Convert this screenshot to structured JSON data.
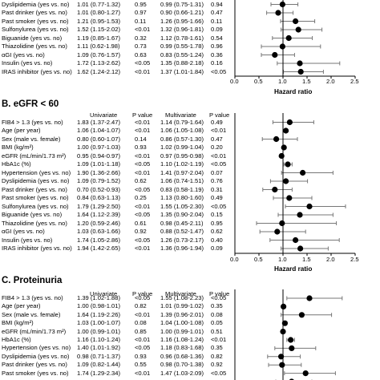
{
  "columns": {
    "univariate": "Univariate",
    "p_value": "P value",
    "multivariate": "Multivariate"
  },
  "panels": [
    {
      "title": "",
      "rows": [
        {
          "label": "Dyslipidemia (yes vs. no)",
          "uni": "1.01 (0.77-1.32)",
          "pu": "0.95",
          "mul": "0.99 (0.75-1.31)",
          "pm": "0.94",
          "hr": 0.99,
          "lo": 0.75,
          "hi": 1.31
        },
        {
          "label": "Past drinker (yes vs. no)",
          "uni": "1.01 (0.80-1.27)",
          "pu": "0.97",
          "mul": "0.90 (0.66-1.21)",
          "pm": "0.47",
          "hr": 0.9,
          "lo": 0.66,
          "hi": 1.21
        },
        {
          "label": "Past smoker (yes vs. no)",
          "uni": "1.21 (0.95-1.53)",
          "pu": "0.11",
          "mul": "1.26 (0.95-1.66)",
          "pm": "0.11",
          "hr": 1.26,
          "lo": 0.95,
          "hi": 1.66
        },
        {
          "label": "Sulfonylurea (yes vs. no)",
          "uni": "1.52 (1.15-2.02)",
          "pu": "<0.01",
          "mul": "1.32 (0.96-1.81)",
          "pm": "0.09",
          "hr": 1.32,
          "lo": 0.96,
          "hi": 1.81
        },
        {
          "label": "Biguanide (yes vs. no)",
          "uni": "1.19 (0.85-1.67)",
          "pu": "0.32",
          "mul": "1.12 (0.78-1.61)",
          "pm": "0.54",
          "hr": 1.12,
          "lo": 0.78,
          "hi": 1.61
        },
        {
          "label": "Thiazolidine (yes vs. no)",
          "uni": "1.11 (0.62-1.98)",
          "pu": "0.73",
          "mul": "0.99 (0.55-1.78)",
          "pm": "0.96",
          "hr": 0.99,
          "lo": 0.55,
          "hi": 1.78
        },
        {
          "label": "αGI (yes vs. no)",
          "uni": "1.09 (0.76-1.57)",
          "pu": "0.63",
          "mul": "0.83 (0.55-1.24)",
          "pm": "0.36",
          "hr": 0.83,
          "lo": 0.55,
          "hi": 1.24
        },
        {
          "label": "Insulin (yes vs. no)",
          "uni": "1.72 (1.13-2.62)",
          "pu": "<0.05",
          "mul": "1.35 (0.88-2.18)",
          "pm": "0.16",
          "hr": 1.35,
          "lo": 0.88,
          "hi": 2.18
        },
        {
          "label": "IRAS inhibitor (yes vs. no)",
          "uni": "1.62 (1.24-2.12)",
          "pu": "<0.01",
          "mul": "1.37 (1.01-1.84)",
          "pm": "<0.05",
          "hr": 1.37,
          "lo": 1.01,
          "hi": 1.84
        }
      ],
      "xlabel": "Hazard ratio",
      "xticks": [
        "0.0",
        "0.5",
        "1.0",
        "1.5",
        "2.0",
        "2.5"
      ]
    },
    {
      "title": "B. eGFR < 60",
      "rows": [
        {
          "label": "FIB4 > 1.3 (yes vs. no)",
          "uni": "1.83 (1.37-2.47)",
          "pu": "<0.01",
          "mul": "1.14 (0.79-1.64)",
          "pm": "0.49",
          "hr": 1.14,
          "lo": 0.79,
          "hi": 1.64
        },
        {
          "label": "Age (per year)",
          "uni": "1.06 (1.04-1.07)",
          "pu": "<0.01",
          "mul": "1.06 (1.05-1.08)",
          "pm": "<0.01",
          "hr": 1.06,
          "lo": 1.05,
          "hi": 1.08
        },
        {
          "label": "Sex (male vs. female)",
          "uni": "0.80 (0.60-1.07)",
          "pu": "0.14",
          "mul": "0.86 (0.57-1.30)",
          "pm": "0.47",
          "hr": 0.86,
          "lo": 0.57,
          "hi": 1.3
        },
        {
          "label": "BMI (kg/m²)",
          "uni": "1.00 (0.97-1.03)",
          "pu": "0.93",
          "mul": "1.02 (0.99-1.04)",
          "pm": "0.20",
          "hr": 1.02,
          "lo": 0.99,
          "hi": 1.04
        },
        {
          "label": "eGFR (mL/min/1.73 m²)",
          "uni": "0.95 (0.94-0.97)",
          "pu": "<0.01",
          "mul": "0.97 (0.95-0.98)",
          "pm": "<0.01",
          "hr": 0.97,
          "lo": 0.95,
          "hi": 0.98
        },
        {
          "label": "HbA1c (%)",
          "uni": "1.09 (1.01-1.18)",
          "pu": "<0.05",
          "mul": "1.10 (1.02-1.19)",
          "pm": "<0.05",
          "hr": 1.1,
          "lo": 1.02,
          "hi": 1.19
        },
        {
          "label": "Hypertension (yes vs. no)",
          "uni": "1.90 (1.36-2.66)",
          "pu": "<0.01",
          "mul": "1.41 (0.97-2.04)",
          "pm": "0.07",
          "hr": 1.41,
          "lo": 0.97,
          "hi": 2.04
        },
        {
          "label": "Dyslipidemia (yes vs. no)",
          "uni": "1.09 (0.79-1.52)",
          "pu": "0.62",
          "mul": "1.06 (0.74-1.51)",
          "pm": "0.76",
          "hr": 1.06,
          "lo": 0.74,
          "hi": 1.51
        },
        {
          "label": "Past drinker (yes vs. no)",
          "uni": "0.70 (0.52-0.93)",
          "pu": "<0.05",
          "mul": "0.83 (0.58-1.19)",
          "pm": "0.31",
          "hr": 0.83,
          "lo": 0.58,
          "hi": 1.19
        },
        {
          "label": "Past smoker (yes vs. no)",
          "uni": "0.84 (0.63-1.13)",
          "pu": "0.25",
          "mul": "1.13 (0.80-1.60)",
          "pm": "0.49",
          "hr": 1.13,
          "lo": 0.8,
          "hi": 1.6
        },
        {
          "label": "Sulfonylurea (yes vs. no)",
          "uni": "1.79 (1.29-2.50)",
          "pu": "<0.01",
          "mul": "1.55 (1.05-2.30)",
          "pm": "<0.05",
          "hr": 1.55,
          "lo": 1.05,
          "hi": 2.3
        },
        {
          "label": "Biguanide (yes vs. no)",
          "uni": "1.64 (1.12-2.39)",
          "pu": "<0.05",
          "mul": "1.35 (0.90-2.04)",
          "pm": "0.15",
          "hr": 1.35,
          "lo": 0.9,
          "hi": 2.04
        },
        {
          "label": "Thiazolidine (yes vs. no)",
          "uni": "1.20 (0.59-2.46)",
          "pu": "0.61",
          "mul": "0.98 (0.45-2.11)",
          "pm": "0.95",
          "hr": 0.98,
          "lo": 0.45,
          "hi": 2.11
        },
        {
          "label": "αGI (yes vs. no)",
          "uni": "1.03 (0.63-1.66)",
          "pu": "0.92",
          "mul": "0.88 (0.52-1.47)",
          "pm": "0.62",
          "hr": 0.88,
          "lo": 0.52,
          "hi": 1.47
        },
        {
          "label": "Insulin (yes vs. no)",
          "uni": "1.74 (1.05-2.86)",
          "pu": "<0.05",
          "mul": "1.26 (0.73-2.17)",
          "pm": "0.40",
          "hr": 1.26,
          "lo": 0.73,
          "hi": 2.17
        },
        {
          "label": "IRAS inhibitor (yes vs. no)",
          "uni": "1.94 (1.42-2.65)",
          "pu": "<0.01",
          "mul": "1.36 (0.96-1.94)",
          "pm": "0.09",
          "hr": 1.36,
          "lo": 0.96,
          "hi": 1.94
        }
      ],
      "xlabel": "Hazard ratio",
      "xticks": [
        "0.0",
        "0.5",
        "1.0",
        "1.5",
        "2.0",
        "2.5"
      ]
    },
    {
      "title": "C. Proteinuria",
      "rows": [
        {
          "label": "FIB4 > 1.3 (yes vs. no)",
          "uni": "1.39 (1.02-1.88)",
          "pu": "<0.05",
          "mul": "1.55 (1.08-2.23)",
          "pm": "<0.05",
          "hr": 1.55,
          "lo": 1.08,
          "hi": 2.23
        },
        {
          "label": "Age (per year)",
          "uni": "1.00 (0.98-1.01)",
          "pu": "0.82",
          "mul": "1.01 (0.99-1.02)",
          "pm": "0.35",
          "hr": 1.01,
          "lo": 0.99,
          "hi": 1.02
        },
        {
          "label": "Sex (male vs. female)",
          "uni": "1.64 (1.19-2.26)",
          "pu": "<0.01",
          "mul": "1.39 (0.96-2.01)",
          "pm": "0.08",
          "hr": 1.39,
          "lo": 0.96,
          "hi": 2.01
        },
        {
          "label": "BMI (kg/m²)",
          "uni": "1.03 (1.00-1.07)",
          "pu": "0.08",
          "mul": "1.04 (1.00-1.08)",
          "pm": "0.05",
          "hr": 1.04,
          "lo": 1.0,
          "hi": 1.08
        },
        {
          "label": "eGFR (mL/min/1.73 m²)",
          "uni": "1.00 (0.99-1.01)",
          "pu": "0.85",
          "mul": "1.00 (0.99-1.01)",
          "pm": "0.51",
          "hr": 1.0,
          "lo": 0.99,
          "hi": 1.01
        },
        {
          "label": "HbA1c (%)",
          "uni": "1.16 (1.10-1.24)",
          "pu": "<0.01",
          "mul": "1.16 (1.08-1.24)",
          "pm": "<0.01",
          "hr": 1.16,
          "lo": 1.08,
          "hi": 1.24
        },
        {
          "label": "Hypertension (yes vs. no)",
          "uni": "1.40 (1.01-1.92)",
          "pu": "<0.05",
          "mul": "1.18 (0.83-1.68)",
          "pm": "0.35",
          "hr": 1.18,
          "lo": 0.83,
          "hi": 1.68
        },
        {
          "label": "Dyslipidemia (yes vs. no)",
          "uni": "0.98 (0.71-1.37)",
          "pu": "0.93",
          "mul": "0.96 (0.68-1.36)",
          "pm": "0.82",
          "hr": 0.96,
          "lo": 0.68,
          "hi": 1.36
        },
        {
          "label": "Past drinker (yes vs. no)",
          "uni": "1.09 (0.82-1.44)",
          "pu": "0.55",
          "mul": "0.98 (0.70-1.38)",
          "pm": "0.92",
          "hr": 0.98,
          "lo": 0.7,
          "hi": 1.38
        },
        {
          "label": "Past smoker (yes vs. no)",
          "uni": "1.74 (1.29-2.34)",
          "pu": "<0.01",
          "mul": "1.47 (1.03-2.09)",
          "pm": "<0.05",
          "hr": 1.47,
          "lo": 1.03,
          "hi": 2.09
        },
        {
          "label": "",
          "uni": "",
          "pu": "",
          "mul": "",
          "pm": "",
          "hr": 1.18,
          "lo": 0.85,
          "hi": 1.6
        }
      ]
    }
  ],
  "chart_data": [
    {
      "type": "forest",
      "xlabel": "Hazard ratio",
      "xlim": [
        0,
        2.5
      ],
      "categories": [
        "Dyslipidemia (yes vs. no)",
        "Past drinker (yes vs. no)",
        "Past smoker (yes vs. no)",
        "Sulfonylurea (yes vs. no)",
        "Biguanide (yes vs. no)",
        "Thiazolidine (yes vs. no)",
        "αGI (yes vs. no)",
        "Insulin (yes vs. no)",
        "IRAS inhibitor (yes vs. no)"
      ],
      "values": [
        0.99,
        0.9,
        1.26,
        1.32,
        1.12,
        0.99,
        0.83,
        1.35,
        1.37
      ],
      "ci_low": [
        0.75,
        0.66,
        0.95,
        0.96,
        0.78,
        0.55,
        0.55,
        0.88,
        1.01
      ],
      "ci_high": [
        1.31,
        1.21,
        1.66,
        1.81,
        1.61,
        1.78,
        1.24,
        2.18,
        1.84
      ]
    },
    {
      "type": "forest",
      "title": "B. eGFR < 60",
      "xlabel": "Hazard ratio",
      "xlim": [
        0,
        2.5
      ],
      "categories": [
        "FIB4 > 1.3",
        "Age",
        "Sex",
        "BMI",
        "eGFR",
        "HbA1c",
        "Hypertension",
        "Dyslipidemia",
        "Past drinker",
        "Past smoker",
        "Sulfonylurea",
        "Biguanide",
        "Thiazolidine",
        "αGI",
        "Insulin",
        "IRAS inhibitor"
      ],
      "values": [
        1.14,
        1.06,
        0.86,
        1.02,
        0.97,
        1.1,
        1.41,
        1.06,
        0.83,
        1.13,
        1.55,
        1.35,
        0.98,
        0.88,
        1.26,
        1.36
      ],
      "ci_low": [
        0.79,
        1.05,
        0.57,
        0.99,
        0.95,
        1.02,
        0.97,
        0.74,
        0.58,
        0.8,
        1.05,
        0.9,
        0.45,
        0.52,
        0.73,
        0.96
      ],
      "ci_high": [
        1.64,
        1.08,
        1.3,
        1.04,
        0.98,
        1.19,
        2.04,
        1.51,
        1.19,
        1.6,
        2.3,
        2.04,
        2.11,
        1.47,
        2.17,
        1.94
      ]
    },
    {
      "type": "forest",
      "title": "C. Proteinuria",
      "xlim": [
        0,
        2.5
      ],
      "categories": [
        "FIB4 > 1.3",
        "Age",
        "Sex",
        "BMI",
        "eGFR",
        "HbA1c",
        "Hypertension",
        "Dyslipidemia",
        "Past drinker",
        "Past smoker"
      ],
      "values": [
        1.55,
        1.01,
        1.39,
        1.04,
        1.0,
        1.16,
        1.18,
        0.96,
        0.98,
        1.47
      ],
      "ci_low": [
        1.08,
        0.99,
        0.96,
        1.0,
        0.99,
        1.08,
        0.83,
        0.68,
        0.7,
        1.03
      ],
      "ci_high": [
        2.23,
        1.02,
        2.01,
        1.08,
        1.01,
        1.24,
        1.68,
        1.36,
        1.38,
        2.09
      ]
    }
  ]
}
